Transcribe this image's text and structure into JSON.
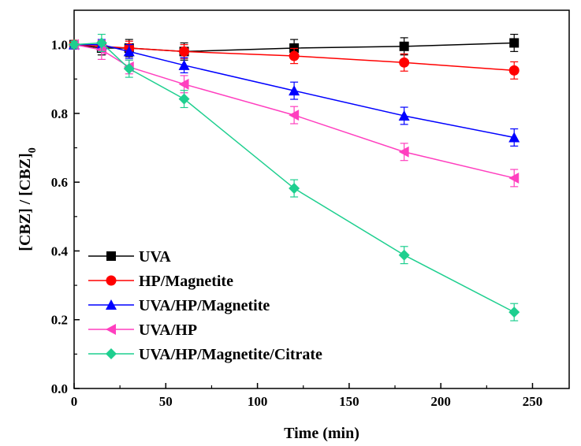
{
  "chart_data": {
    "type": "line",
    "title": "",
    "xlabel": "Time (min)",
    "ylabel_main": "[CBZ] / [CBZ]",
    "ylabel_sub": "0",
    "xlim": [
      0,
      270
    ],
    "ylim": [
      0,
      1.1
    ],
    "xticks": [
      0,
      50,
      100,
      150,
      200,
      250
    ],
    "yticks": [
      0.0,
      0.2,
      0.4,
      0.6,
      0.8,
      1.0
    ],
    "xtick_labels": [
      "0",
      "50",
      "100",
      "150",
      "200",
      "250"
    ],
    "ytick_labels": [
      "0.0",
      "0.2",
      "0.4",
      "0.6",
      "0.8",
      "1.0"
    ],
    "grid": false,
    "legend_position": "bottom-left",
    "x": [
      0,
      15,
      30,
      60,
      120,
      180,
      240
    ],
    "series": [
      {
        "name": "UVA",
        "color": "#000000",
        "marker": "square",
        "values": [
          1.0,
          0.99,
          0.99,
          0.98,
          0.99,
          0.995,
          1.005
        ],
        "errors": [
          0.01,
          0.02,
          0.025,
          0.025,
          0.025,
          0.025,
          0.025
        ]
      },
      {
        "name": "HP/Magnetite",
        "color": "#ff0000",
        "marker": "circle",
        "values": [
          1.0,
          0.995,
          0.99,
          0.98,
          0.967,
          0.948,
          0.925
        ],
        "errors": [
          0.01,
          0.015,
          0.02,
          0.02,
          0.022,
          0.025,
          0.025
        ]
      },
      {
        "name": "UVA/HP/Magnetite",
        "color": "#0000ff",
        "marker": "triangle-up",
        "values": [
          1.0,
          1.0,
          0.98,
          0.94,
          0.866,
          0.793,
          0.73
        ],
        "errors": [
          0.01,
          0.015,
          0.02,
          0.022,
          0.025,
          0.025,
          0.025
        ]
      },
      {
        "name": "UVA/HP",
        "color": "#ff3fbf",
        "marker": "triangle-left",
        "values": [
          1.0,
          0.985,
          0.935,
          0.885,
          0.795,
          0.688,
          0.612
        ],
        "errors": [
          0.01,
          0.028,
          0.02,
          0.025,
          0.025,
          0.025,
          0.025
        ]
      },
      {
        "name": "UVA/HP/Magnetite/Citrate",
        "color": "#1ecf8f",
        "marker": "diamond",
        "values": [
          1.0,
          1.005,
          0.93,
          0.842,
          0.582,
          0.388,
          0.222
        ],
        "errors": [
          0.01,
          0.025,
          0.025,
          0.025,
          0.025,
          0.025,
          0.025
        ]
      }
    ]
  }
}
